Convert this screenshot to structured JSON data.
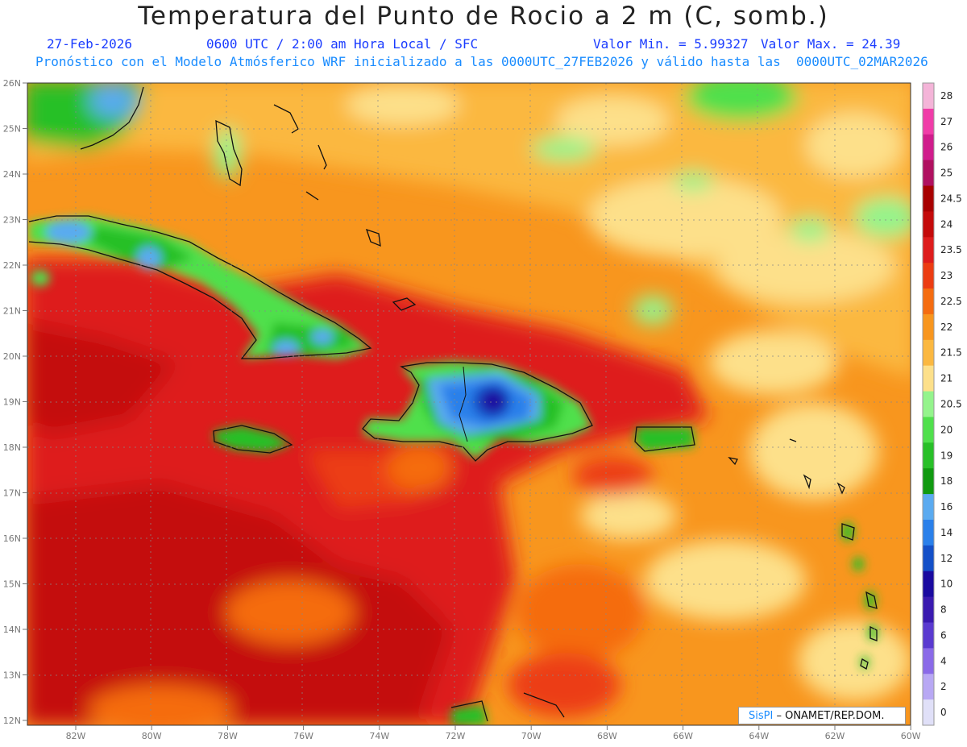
{
  "header": {
    "title": "Temperatura del Punto de Rocio a 2 m (C, somb.)",
    "date": "27-Feb-2026",
    "time": "0600 UTC / 2:00 am Hora Local / SFC",
    "valmin": "Valor Min. = 5.99327",
    "valmax": "Valor Max. = 24.39",
    "forecast": "Pronóstico con el Modelo Atmósferico WRF inicializado a las 0000UTC_27FEB2026 y válido hasta las  0000UTC_02MAR2026"
  },
  "axes": {
    "lat_labels": [
      "26N",
      "25N",
      "24N",
      "23N",
      "22N",
      "21N",
      "20N",
      "19N",
      "18N",
      "17N",
      "16N",
      "15N",
      "14N",
      "13N",
      "12N"
    ],
    "lon_labels": [
      "82W",
      "80W",
      "78W",
      "76W",
      "74W",
      "72W",
      "70W",
      "68W",
      "66W",
      "64W",
      "62W",
      "60W"
    ]
  },
  "colorbar": {
    "levels": [
      {
        "label": "28",
        "color": "#f4b4d8"
      },
      {
        "label": "27",
        "color": "#f03ca8"
      },
      {
        "label": "26",
        "color": "#d01c8c"
      },
      {
        "label": "25",
        "color": "#b01060"
      },
      {
        "label": "24.5",
        "color": "#a80000"
      },
      {
        "label": "24",
        "color": "#c40a0a"
      },
      {
        "label": "23.5",
        "color": "#de1c1c"
      },
      {
        "label": "23",
        "color": "#ec3c12"
      },
      {
        "label": "22.5",
        "color": "#f56c10"
      },
      {
        "label": "22",
        "color": "#f8961e"
      },
      {
        "label": "21.5",
        "color": "#fbb840"
      },
      {
        "label": "21",
        "color": "#fde08a"
      },
      {
        "label": "20.5",
        "color": "#94f48c"
      },
      {
        "label": "20",
        "color": "#50e04c"
      },
      {
        "label": "19",
        "color": "#28c028"
      },
      {
        "label": "18",
        "color": "#109a10"
      },
      {
        "label": "16",
        "color": "#5aaaf0"
      },
      {
        "label": "14",
        "color": "#2a80ea"
      },
      {
        "label": "12",
        "color": "#1450c8"
      },
      {
        "label": "10",
        "color": "#1a0aa0"
      },
      {
        "label": "8",
        "color": "#3a1ab0"
      },
      {
        "label": "6",
        "color": "#5a3ad0"
      },
      {
        "label": "4",
        "color": "#8a6ae8"
      },
      {
        "label": "2",
        "color": "#b8a8f4"
      },
      {
        "label": "0",
        "color": "#e0e0f8"
      }
    ]
  },
  "credit": {
    "logo": "SisPI",
    "org": "– ONAMET/REP.DOM."
  }
}
